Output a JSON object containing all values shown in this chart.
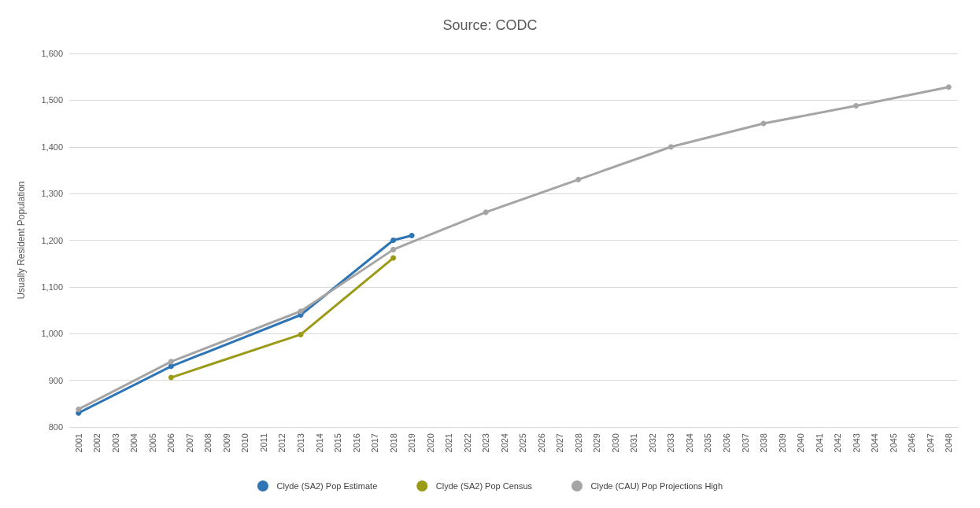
{
  "chart_data": {
    "type": "line",
    "title": "Source: CODC",
    "ylabel": "Usually Resident Population",
    "categories": [
      "2001",
      "2002",
      "2003",
      "2004",
      "2005",
      "2006",
      "2007",
      "2008",
      "2009",
      "2010",
      "2011",
      "2012",
      "2013",
      "2014",
      "2015",
      "2016",
      "2017",
      "2018",
      "2019",
      "2020",
      "2021",
      "2022",
      "2023",
      "2024",
      "2025",
      "2026",
      "2027",
      "2028",
      "2029",
      "2030",
      "2031",
      "2032",
      "2033",
      "2034",
      "2035",
      "2036",
      "2037",
      "2038",
      "2039",
      "2040",
      "2041",
      "2042",
      "2043",
      "2044",
      "2045",
      "2046",
      "2047",
      "2048"
    ],
    "series": [
      {
        "name": "Clyde (SA2) Pop Estimate",
        "color": "#2e75b6",
        "values": [
          830,
          null,
          null,
          null,
          null,
          930,
          null,
          null,
          null,
          null,
          null,
          null,
          1040,
          null,
          null,
          null,
          null,
          1200,
          1210,
          null,
          null,
          null,
          null,
          null,
          null,
          null,
          null,
          null,
          null,
          null,
          null,
          null,
          null,
          null,
          null,
          null,
          null,
          null,
          null,
          null,
          null,
          null,
          null,
          null,
          null,
          null,
          null,
          null
        ]
      },
      {
        "name": "Clyde (SA2) Pop Census",
        "color": "#9a9a16",
        "values": [
          null,
          null,
          null,
          null,
          null,
          906,
          null,
          null,
          null,
          null,
          null,
          null,
          998,
          null,
          null,
          null,
          null,
          1162,
          null,
          null,
          null,
          null,
          null,
          null,
          null,
          null,
          null,
          null,
          null,
          null,
          null,
          null,
          null,
          null,
          null,
          null,
          null,
          null,
          null,
          null,
          null,
          null,
          null,
          null,
          null,
          null,
          null,
          null
        ]
      },
      {
        "name": "Clyde (CAU) Pop Projections High",
        "color": "#a5a5a5",
        "values": [
          838,
          null,
          null,
          null,
          null,
          940,
          null,
          null,
          null,
          null,
          null,
          null,
          1048,
          null,
          null,
          null,
          null,
          1180,
          null,
          null,
          null,
          null,
          1260,
          null,
          null,
          null,
          null,
          1330,
          null,
          null,
          null,
          null,
          1400,
          null,
          null,
          null,
          null,
          1450,
          null,
          null,
          null,
          null,
          1488,
          null,
          null,
          null,
          null,
          1528
        ]
      }
    ],
    "ylim": [
      800,
      1600
    ],
    "yticks": [
      800,
      900,
      {
        "value": 1000,
        "label": "1,000"
      },
      {
        "value": 1100,
        "label": "1,100"
      },
      {
        "value": 1200,
        "label": "1,200"
      },
      {
        "value": 1300,
        "label": "1,300"
      },
      {
        "value": 1400,
        "label": "1,400"
      },
      {
        "value": 1500,
        "label": "1,500"
      },
      {
        "value": 1600,
        "label": "1,600"
      }
    ],
    "grid": "y",
    "legend": "bottom",
    "marker": "circle",
    "line_style": "solid"
  }
}
